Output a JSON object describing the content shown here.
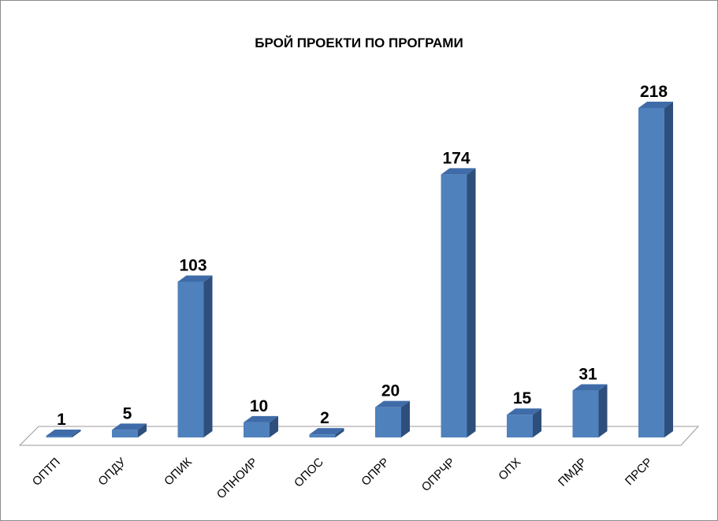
{
  "chart_data": {
    "type": "bar",
    "title": "БРОЙ ПРОЕКТИ ПО ПРОГРАМИ",
    "categories": [
      "ОПТП",
      "ОПДУ",
      "ОПИК",
      "ОПНОИР",
      "ОПОС",
      "ОПРР",
      "ОПРЧР",
      "ОПХ",
      "ПМДР",
      "ПРСР"
    ],
    "values": [
      1,
      5,
      103,
      10,
      2,
      20,
      174,
      15,
      31,
      218
    ],
    "xlabel": "",
    "ylabel": "",
    "ylim": [
      0,
      218
    ],
    "grid": false,
    "legend": "none",
    "colors": {
      "bar_front": "#4F81BD",
      "bar_top": "#3F6CA8",
      "bar_side": "#2E4F7C",
      "floor": "#ffffff"
    }
  }
}
